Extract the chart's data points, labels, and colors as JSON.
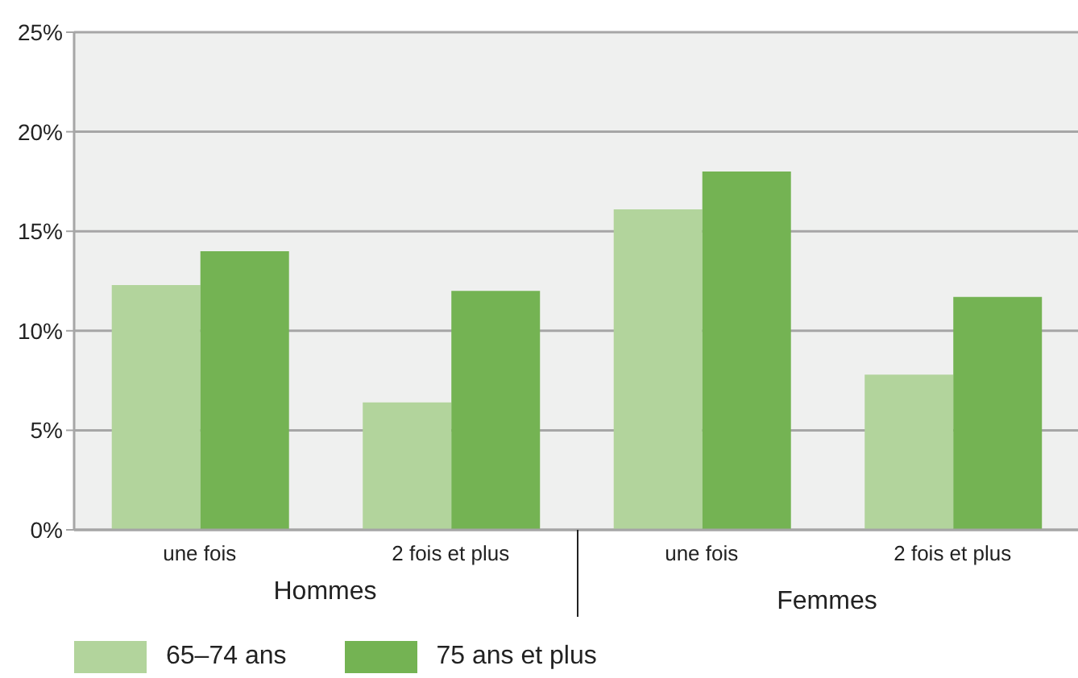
{
  "chart_data": {
    "type": "bar",
    "categories": [
      "une fois",
      "2 fois et plus",
      "une fois",
      "2 fois et plus"
    ],
    "series": [
      {
        "name": "65–74 ans",
        "color": "#b2d49c",
        "values": [
          12.3,
          6.4,
          16.1,
          7.8
        ]
      },
      {
        "name": "75 ans et plus",
        "color": "#74b353",
        "values": [
          14.0,
          12.0,
          18.0,
          11.7
        ]
      }
    ],
    "annotations": [
      "Hommes",
      "Femmes"
    ],
    "ylim": [
      0,
      25
    ],
    "yticks": [
      {
        "value": 0,
        "label": "0%"
      },
      {
        "value": 5,
        "label": "5%"
      },
      {
        "value": 10,
        "label": "10%"
      },
      {
        "value": 15,
        "label": "15%"
      },
      {
        "value": 20,
        "label": "20%"
      },
      {
        "value": 25,
        "label": "25%"
      }
    ],
    "grid": "y",
    "legend": "bottom left"
  }
}
